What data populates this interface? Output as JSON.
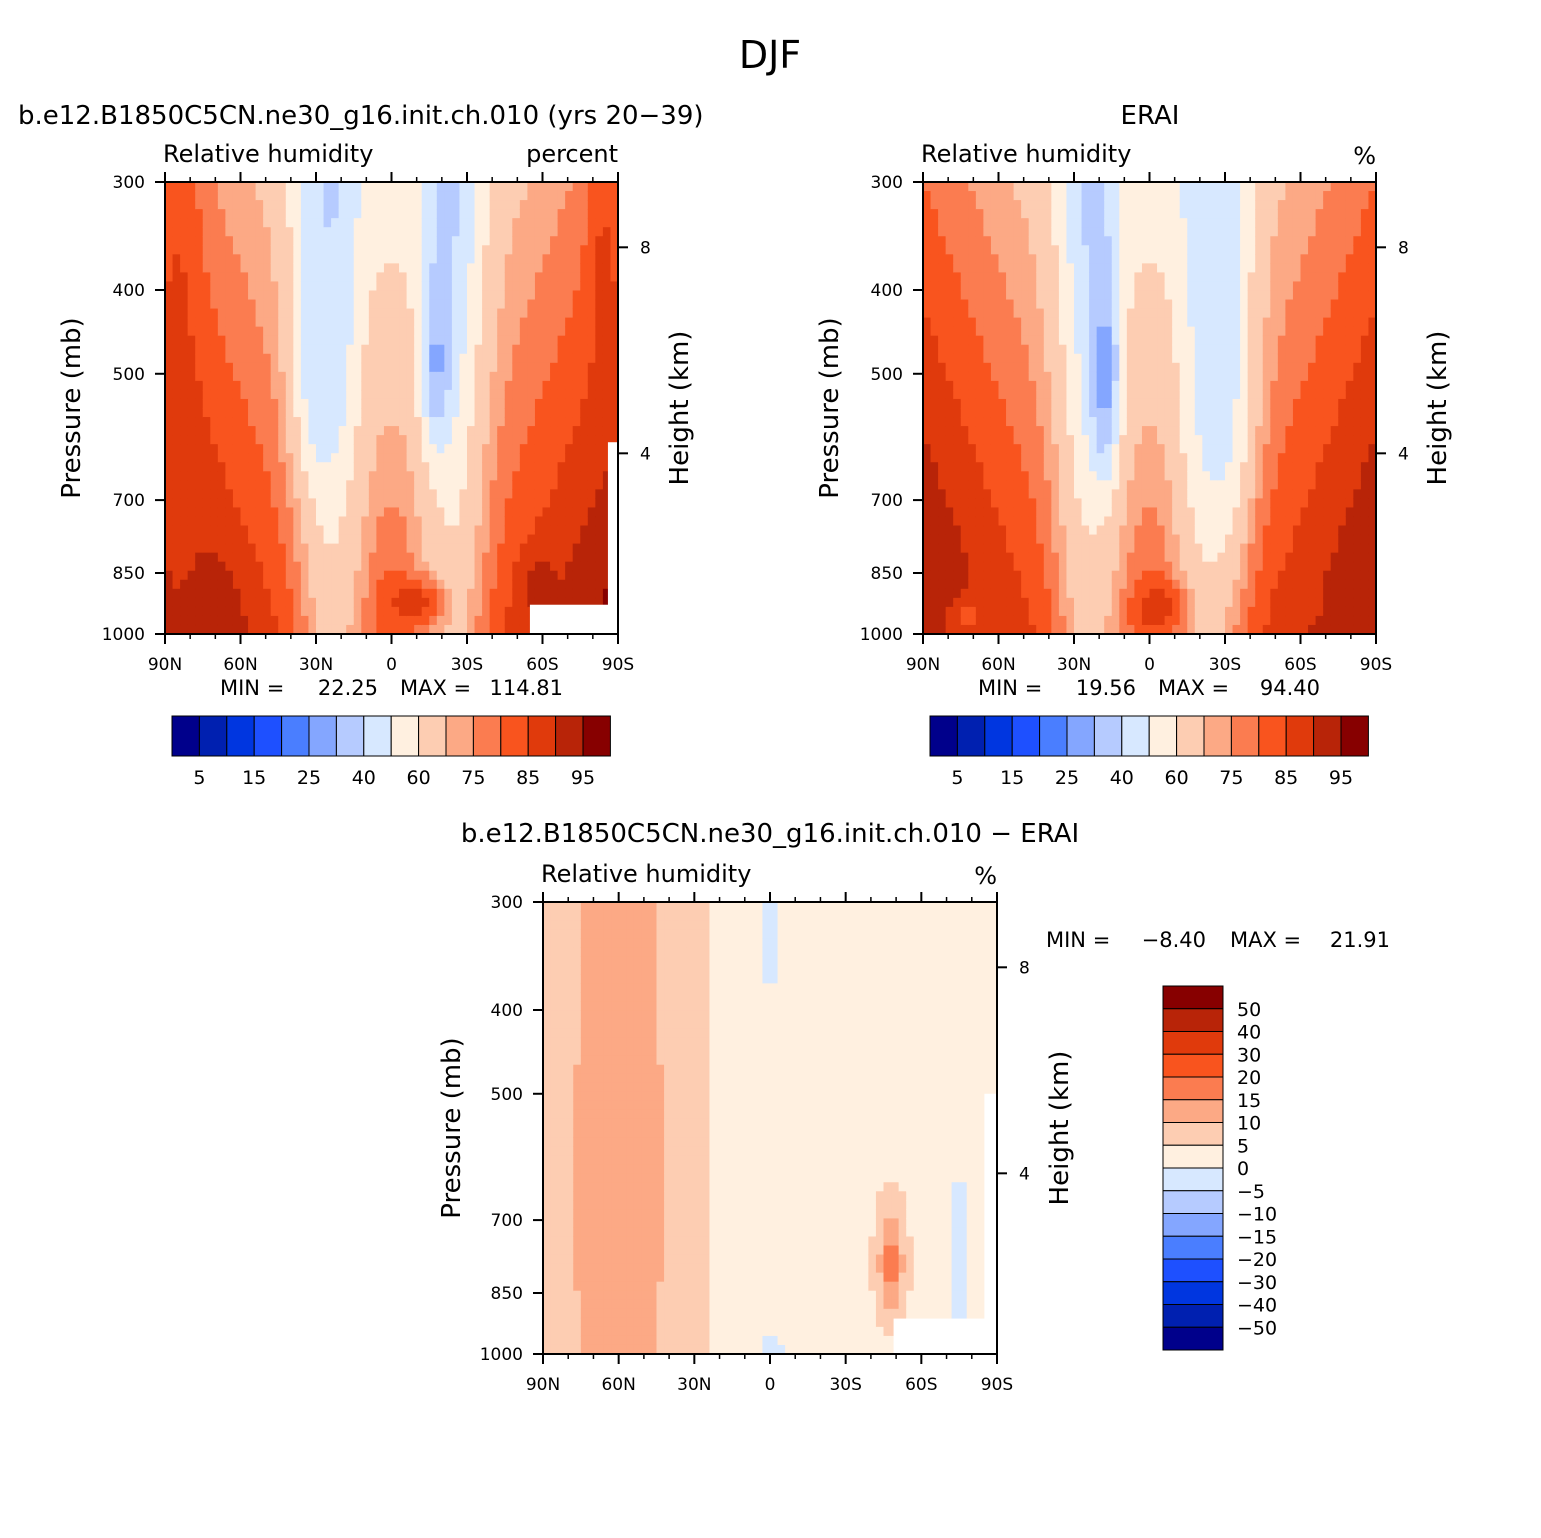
{
  "figure": {
    "title": "DJF"
  },
  "panels": [
    {
      "id": "model",
      "title": "b.e12.B1850C5CN.ne30_g16.init.ch.010 (yrs 20−39)",
      "left_label": "Relative humidity",
      "right_label": "percent",
      "ylabel": "Pressure (mb)",
      "ylabel_right": "Height (km)",
      "stats": {
        "min_label": "MIN =",
        "min": "22.25",
        "max_label": "MAX =",
        "max": "114.81"
      }
    },
    {
      "id": "obs",
      "title": "ERAI",
      "left_label": "Relative humidity",
      "right_label": "%",
      "ylabel": "Pressure (mb)",
      "ylabel_right": "Height (km)",
      "stats": {
        "min_label": "MIN =",
        "min": "19.56",
        "max_label": "MAX =",
        "max": "94.40"
      }
    },
    {
      "id": "diff",
      "title": "b.e12.B1850C5CN.ne30_g16.init.ch.010 − ERAI",
      "left_label": "Relative humidity",
      "right_label": "%",
      "ylabel": "Pressure (mb)",
      "ylabel_right": "Height (km)",
      "stats": {
        "min_label": "MIN =",
        "min": "−8.40",
        "max_label": "MAX =",
        "max": "21.91"
      }
    }
  ],
  "colorbars": {
    "absolute": {
      "colors": [
        "#00008b",
        "#0020b0",
        "#0036e0",
        "#1e50ff",
        "#4a7eff",
        "#84a6ff",
        "#b6cbff",
        "#d7e8ff",
        "#fff0e0",
        "#fdcdb2",
        "#fca985",
        "#fb7c50",
        "#f9541e",
        "#e03a0c",
        "#b82408",
        "#870000"
      ],
      "labels": [
        "5",
        "15",
        "25",
        "40",
        "60",
        "75",
        "85",
        "95"
      ]
    },
    "difference": {
      "colors": [
        "#00008b",
        "#0020b0",
        "#0036e0",
        "#1e50ff",
        "#4a7eff",
        "#84a6ff",
        "#b6cbff",
        "#d7e8ff",
        "#fff0e0",
        "#fdcdb2",
        "#fca985",
        "#fb7c50",
        "#f9541e",
        "#e03a0c",
        "#b82408",
        "#870000"
      ],
      "labels": [
        "50",
        "40",
        "30",
        "20",
        "15",
        "10",
        "5",
        "0",
        "−5",
        "−10",
        "−15",
        "−20",
        "−30",
        "−40",
        "−50"
      ]
    }
  },
  "chart_data": {
    "type": "heatmap",
    "title": "DJF",
    "xlabel": "",
    "ylabel": "Pressure (mb)",
    "ylabel_right": "Height (km)",
    "x_ticks": [
      "90N",
      "60N",
      "30N",
      "0",
      "30S",
      "60S",
      "90S"
    ],
    "x_range": [
      90,
      -90
    ],
    "y_ticks": [
      300,
      400,
      500,
      700,
      850,
      1000
    ],
    "y_range": [
      1000,
      300
    ],
    "y_scale": "log",
    "y_right_ticks": [
      8,
      4
    ],
    "series": [
      {
        "panel": "model",
        "min": 22.25,
        "max": 114.81,
        "blobs": [
          {
            "lat": -18,
            "p": 480,
            "value": 28,
            "lat_width": 6,
            "p_width": 120
          },
          {
            "lat": 28,
            "p": 450,
            "value": 40,
            "lat_width": 10,
            "p_width": 200
          },
          {
            "lat": 84,
            "p": 650,
            "value": 86,
            "lat_width": 8,
            "p_width": 600
          },
          {
            "lat": 75,
            "p": 950,
            "value": 95,
            "lat_width": 14,
            "p_width": 100
          },
          {
            "lat": -10,
            "p": 920,
            "value": 88,
            "lat_width": 12,
            "p_width": 60
          },
          {
            "lat": -58,
            "p": 880,
            "value": 92,
            "lat_width": 8,
            "p_width": 80
          },
          {
            "lat": -84,
            "p": 400,
            "value": 86,
            "lat_width": 6,
            "p_width": 150
          }
        ]
      },
      {
        "panel": "obs",
        "min": 19.56,
        "max": 94.4,
        "blobs": [
          {
            "lat": 18,
            "p": 500,
            "value": 25,
            "lat_width": 6,
            "p_width": 150
          },
          {
            "lat": -28,
            "p": 500,
            "value": 45,
            "lat_width": 12,
            "p_width": 250
          },
          {
            "lat": -4,
            "p": 930,
            "value": 88,
            "lat_width": 10,
            "p_width": 60
          },
          {
            "lat": -60,
            "p": 920,
            "value": 88,
            "lat_width": 8,
            "p_width": 60
          },
          {
            "lat": 72,
            "p": 960,
            "value": 84,
            "lat_width": 10,
            "p_width": 60
          }
        ]
      },
      {
        "panel": "diff",
        "min": -8.4,
        "max": 21.91,
        "blobs": [
          {
            "lat": -48,
            "p": 790,
            "value": 18,
            "lat_width": 5,
            "p_width": 100
          },
          {
            "lat": -75,
            "p": 780,
            "value": -6,
            "lat_width": 3,
            "p_width": 180
          },
          {
            "lat": 0,
            "p": 330,
            "value": -2,
            "lat_width": 3,
            "p_width": 60
          },
          {
            "lat": 0,
            "p": 980,
            "value": -2,
            "lat_width": 6,
            "p_width": 30
          },
          {
            "lat": 60,
            "p": 650,
            "value": 12,
            "lat_width": 20,
            "p_width": 500
          }
        ]
      }
    ]
  }
}
